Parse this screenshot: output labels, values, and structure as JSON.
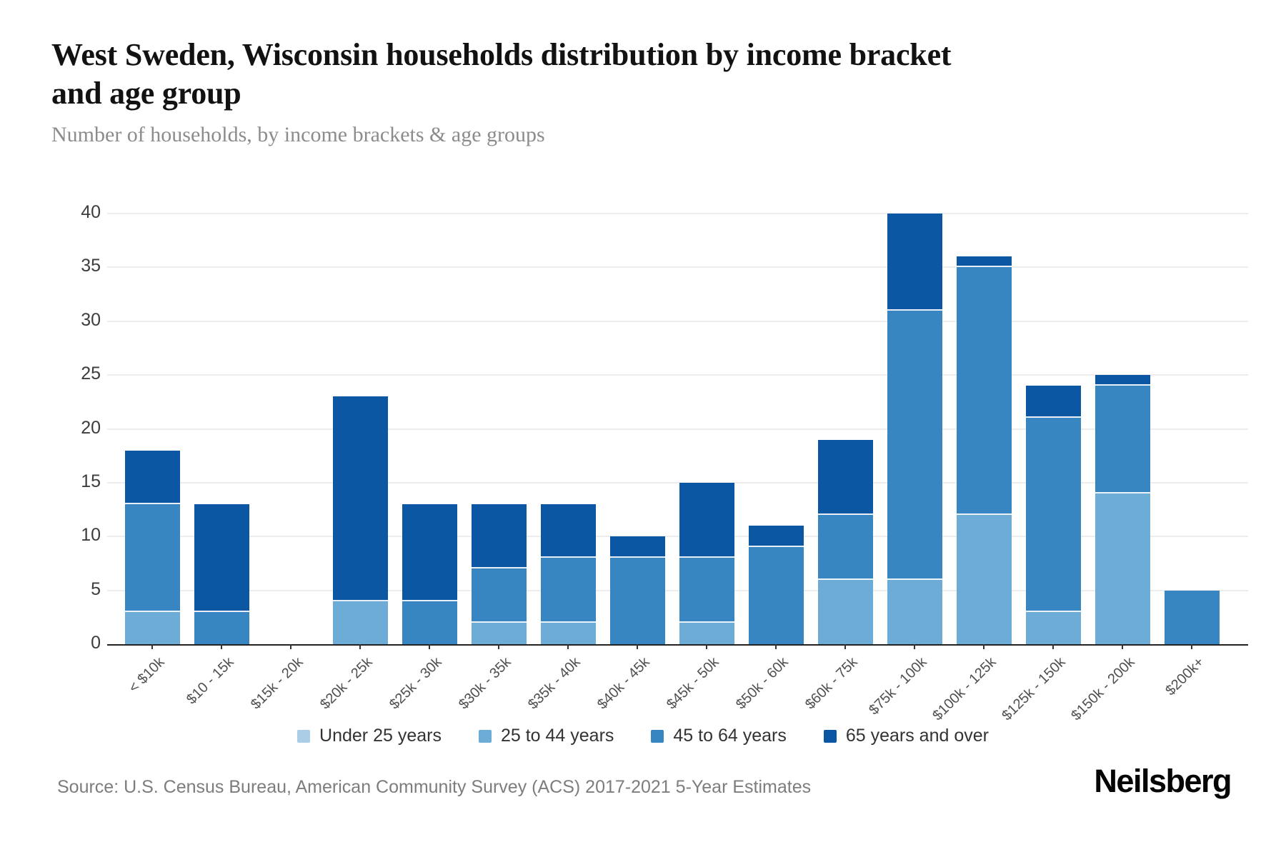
{
  "header": {
    "title_line1": "West Sweden, Wisconsin households distribution by income bracket",
    "title_line2": "and age group",
    "subtitle": "Number of households, by income brackets & age groups"
  },
  "chart_data": {
    "type": "bar",
    "stacked": true,
    "title": "West Sweden, Wisconsin households distribution by income bracket and age group",
    "subtitle": "Number of households, by income brackets & age groups",
    "xlabel": "",
    "ylabel": "",
    "ylim": [
      0,
      40
    ],
    "yticks": [
      0,
      5,
      10,
      15,
      20,
      25,
      30,
      35,
      40
    ],
    "grid": true,
    "legend_position": "bottom",
    "categories": [
      "< $10k",
      "$10 - 15k",
      "$15k - 20k",
      "$20k - 25k",
      "$25k - 30k",
      "$30k - 35k",
      "$35k - 40k",
      "$40k - 45k",
      "$45k - 50k",
      "$50k - 60k",
      "$60k - 75k",
      "$75k - 100k",
      "$100k - 125k",
      "$125k - 150k",
      "$150k - 200k",
      "$200k+"
    ],
    "series": [
      {
        "name": "Under 25 years",
        "color": "#abcee6",
        "values": [
          0,
          0,
          0,
          0,
          0,
          0,
          0,
          0,
          0,
          0,
          0,
          0,
          0,
          0,
          0,
          0
        ]
      },
      {
        "name": "25 to 44 years",
        "color": "#6cacd6",
        "values": [
          3,
          0,
          0,
          4,
          0,
          2,
          2,
          0,
          2,
          0,
          6,
          6,
          12,
          3,
          14,
          0
        ]
      },
      {
        "name": "45 to 64 years",
        "color": "#3785c1",
        "values": [
          10,
          3,
          0,
          0,
          4,
          5,
          6,
          8,
          6,
          9,
          6,
          25,
          23,
          18,
          10,
          5
        ]
      },
      {
        "name": "65 years and over",
        "color": "#0b57a4",
        "values": [
          5,
          10,
          0,
          19,
          9,
          6,
          5,
          2,
          7,
          2,
          7,
          9,
          1,
          3,
          1,
          0
        ]
      }
    ],
    "totals": [
      18,
      13,
      0,
      23,
      13,
      13,
      13,
      10,
      15,
      11,
      19,
      40,
      36,
      24,
      25,
      5
    ]
  },
  "footer": {
    "source": "Source: U.S. Census Bureau, American Community Survey (ACS) 2017-2021 5-Year Estimates",
    "logo": "Neilsberg"
  }
}
